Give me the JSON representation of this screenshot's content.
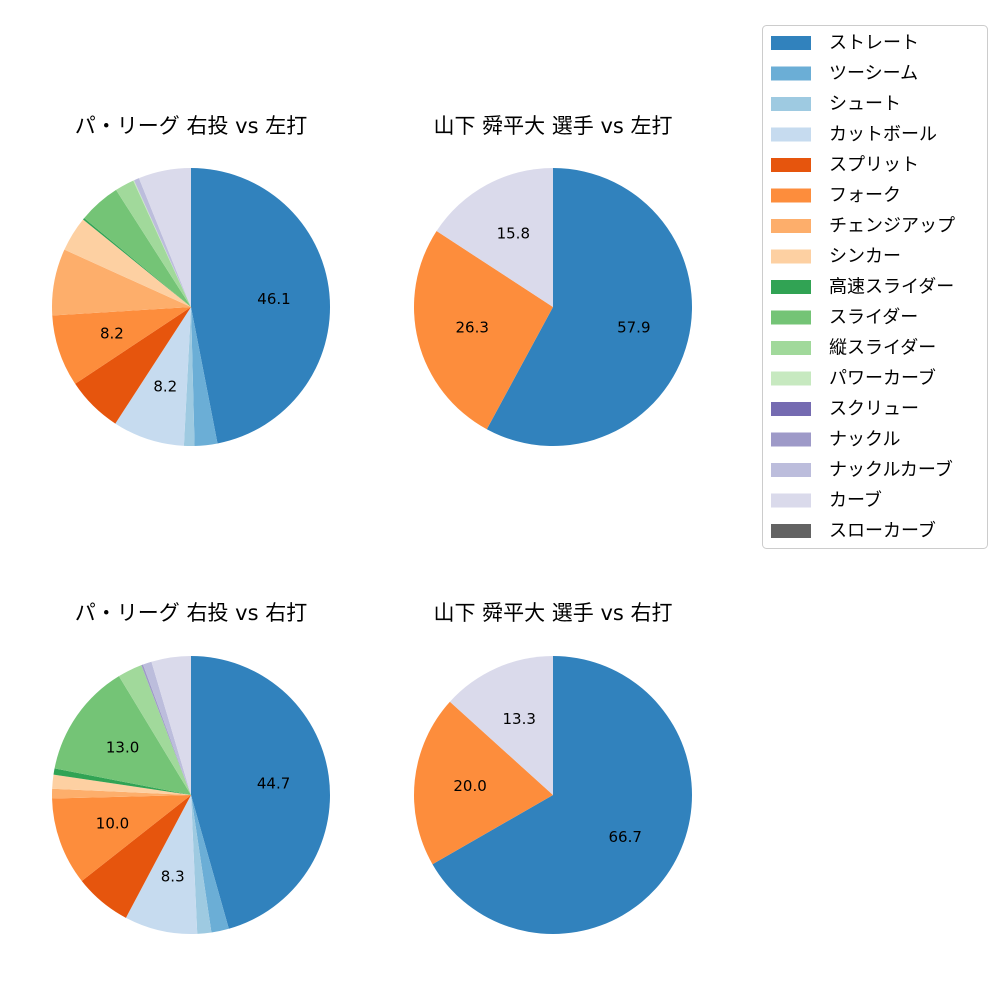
{
  "colors": {
    "ストレート": "#3182bd",
    "ツーシーム": "#6baed6",
    "シュート": "#9ecae1",
    "カットボール": "#c6dbef",
    "スプリット": "#e6550d",
    "フォーク": "#fd8d3c",
    "チェンジアップ": "#fdae6b",
    "シンカー": "#fdd0a2",
    "高速スライダー": "#31a354",
    "スライダー": "#74c476",
    "縦スライダー": "#a1d99b",
    "パワーカーブ": "#c7e9c0",
    "スクリュー": "#756bb1",
    "ナックル": "#9e9ac8",
    "ナックルカーブ": "#bcbddc",
    "カーブ": "#dadaeb",
    "スローカーブ": "#636363"
  },
  "legend": {
    "entries": [
      "ストレート",
      "ツーシーム",
      "シュート",
      "カットボール",
      "スプリット",
      "フォーク",
      "チェンジアップ",
      "シンカー",
      "高速スライダー",
      "スライダー",
      "縦スライダー",
      "パワーカーブ",
      "スクリュー",
      "ナックル",
      "ナックルカーブ",
      "カーブ",
      "スローカーブ"
    ]
  },
  "chart_data": [
    {
      "type": "pie",
      "title": "パ・リーグ 右投 vs 左打",
      "slices": [
        {
          "name": "ストレート",
          "value": 46.1,
          "label": "46.1"
        },
        {
          "name": "ツーシーム",
          "value": 2.6,
          "label": ""
        },
        {
          "name": "シュート",
          "value": 1.2,
          "label": ""
        },
        {
          "name": "カットボール",
          "value": 8.2,
          "label": "8.2"
        },
        {
          "name": "スプリット",
          "value": 6.4,
          "label": ""
        },
        {
          "name": "フォーク",
          "value": 8.2,
          "label": "8.2"
        },
        {
          "name": "チェンジアップ",
          "value": 7.6,
          "label": ""
        },
        {
          "name": "シンカー",
          "value": 4.0,
          "label": ""
        },
        {
          "name": "高速スライダー",
          "value": 0.2,
          "label": ""
        },
        {
          "name": "スライダー",
          "value": 4.8,
          "label": ""
        },
        {
          "name": "縦スライダー",
          "value": 2.2,
          "label": ""
        },
        {
          "name": "パワーカーブ",
          "value": 0.1,
          "label": ""
        },
        {
          "name": "ナックルカーブ",
          "value": 0.6,
          "label": ""
        },
        {
          "name": "カーブ",
          "value": 6.0,
          "label": ""
        }
      ]
    },
    {
      "type": "pie",
      "title": "山下 舜平大 選手 vs 左打",
      "slices": [
        {
          "name": "ストレート",
          "value": 57.9,
          "label": "57.9"
        },
        {
          "name": "フォーク",
          "value": 26.3,
          "label": "26.3"
        },
        {
          "name": "カーブ",
          "value": 15.8,
          "label": "15.8"
        }
      ]
    },
    {
      "type": "pie",
      "title": "パ・リーグ 右投 vs 右打",
      "slices": [
        {
          "name": "ストレート",
          "value": 44.7,
          "label": "44.7"
        },
        {
          "name": "ツーシーム",
          "value": 2.0,
          "label": ""
        },
        {
          "name": "シュート",
          "value": 1.6,
          "label": ""
        },
        {
          "name": "カットボール",
          "value": 8.3,
          "label": "8.3"
        },
        {
          "name": "スプリット",
          "value": 6.5,
          "label": ""
        },
        {
          "name": "フォーク",
          "value": 10.0,
          "label": "10.0"
        },
        {
          "name": "チェンジアップ",
          "value": 1.1,
          "label": ""
        },
        {
          "name": "シンカー",
          "value": 1.6,
          "label": ""
        },
        {
          "name": "高速スライダー",
          "value": 0.7,
          "label": ""
        },
        {
          "name": "スライダー",
          "value": 13.0,
          "label": "13.0"
        },
        {
          "name": "縦スライダー",
          "value": 2.8,
          "label": ""
        },
        {
          "name": "ナックル",
          "value": 0.2,
          "label": ""
        },
        {
          "name": "ナックルカーブ",
          "value": 1.0,
          "label": ""
        },
        {
          "name": "カーブ",
          "value": 4.5,
          "label": ""
        }
      ]
    },
    {
      "type": "pie",
      "title": "山下 舜平大 選手 vs 右打",
      "slices": [
        {
          "name": "ストレート",
          "value": 66.7,
          "label": "66.7"
        },
        {
          "name": "フォーク",
          "value": 20.0,
          "label": "20.0"
        },
        {
          "name": "カーブ",
          "value": 13.3,
          "label": "13.3"
        }
      ]
    }
  ]
}
